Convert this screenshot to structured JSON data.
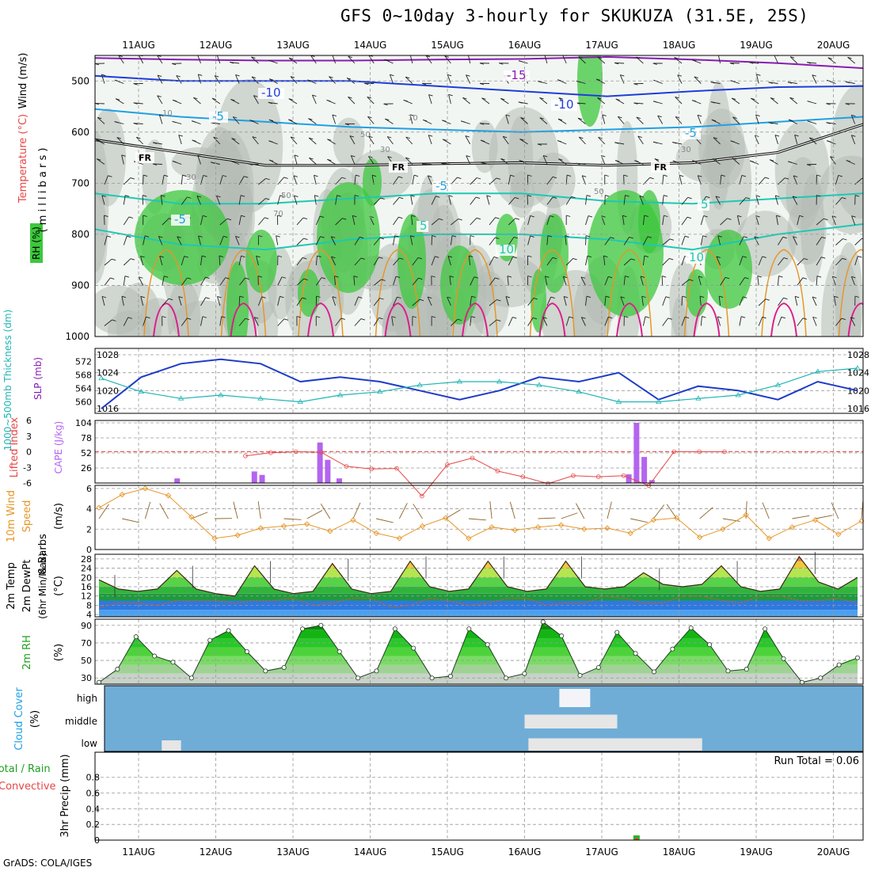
{
  "title": "GFS 0~10day 3-hourly for SKUKUZA (31.5E, 25S)",
  "credit": "GrADS: COLA/IGES",
  "run_total": "Run Total = 0.06",
  "dates": [
    "11AUG",
    "12AUG",
    "13AUG",
    "14AUG",
    "15AUG",
    "16AUG",
    "17AUG",
    "18AUG",
    "19AUG",
    "20AUG"
  ],
  "colors": {
    "rh_green": "#3cc83c",
    "rh_gray": "#b4bcb4",
    "temp_purple": "#8a1ab4",
    "temp_blue": "#1e3cdc",
    "temp_cyan": "#1ea0e6",
    "temp_teal": "#1ec8b4",
    "temp_orange": "#e69628",
    "temp_magenta": "#dc1e8c",
    "slp_blue": "#1e3cc8",
    "thickness_cyan": "#20b4b4",
    "cape_purple": "#b464f0",
    "li_red": "#e64646",
    "wind_orange": "#e69628",
    "barb_brown": "#8c6428",
    "cloud_blue": "#6fadd7",
    "cloud_white": "#e6e6e6"
  },
  "panel_labels": {
    "upper": {
      "rh": "RH (%)",
      "temperature": "Temperature (°C)",
      "wind": "Wind (m/s)",
      "millibars": "( m i l l i b a r s )"
    },
    "thickness": {
      "thick": "1000~500mb Thickness (dm)",
      "slp": "SLP (mb)"
    },
    "cape": {
      "li": "Lifted Index",
      "cape": "CAPE (J/kg)"
    },
    "wind10": {
      "a": "10m Wind",
      "b": "Speed",
      "c": "& Barbs",
      "unit": "(m/s)"
    },
    "temp2m": {
      "a": "2m Temp",
      "b": "2m DewPt",
      "c": "(6hr Min/Max)",
      "unit": "(°C)"
    },
    "rh2m": {
      "a": "2m RH",
      "unit": "(%)"
    },
    "cloud": {
      "a": "Cloud Cover",
      "unit": "(%)"
    },
    "precip": {
      "a": "Total / Rain",
      "b": "Convective",
      "unit": "3hr Precip (mm)"
    }
  },
  "chart_data": [
    {
      "type": "heatmap",
      "panel": "upper_air",
      "y_axis": {
        "ticks": [
          500,
          600,
          700,
          800,
          900,
          1000
        ],
        "label": "millibars",
        "reversed": true
      },
      "x_ticks": [
        "11AUG",
        "12AUG",
        "13AUG",
        "14AUG",
        "15AUG",
        "16AUG",
        "17AUG",
        "18AUG",
        "19AUG",
        "20AUG"
      ],
      "contour_labels": [
        "-15",
        "-10",
        "-10",
        "-5",
        "-5",
        "-5",
        "-5",
        "5",
        "5",
        "10",
        "10",
        "FR",
        "FR",
        "FR"
      ],
      "rh_contour_labels": [
        "10",
        "10",
        "30",
        "30",
        "30",
        "50",
        "50",
        "50",
        "70"
      ],
      "freezing_level_mb": [
        615,
        640,
        665,
        665,
        662,
        660,
        665,
        660,
        640,
        585
      ],
      "temp_levels": [
        {
          "label": "-15",
          "mb": [
            455,
            458,
            460,
            460,
            458,
            457,
            453,
            458,
            465,
            475
          ]
        },
        {
          "label": "-10",
          "mb": [
            490,
            500,
            500,
            500,
            510,
            520,
            530,
            520,
            512,
            510
          ]
        },
        {
          "label": "-5",
          "mb": [
            555,
            570,
            580,
            590,
            595,
            600,
            595,
            590,
            580,
            570
          ]
        },
        {
          "label": "5",
          "mb": [
            720,
            740,
            740,
            730,
            720,
            720,
            735,
            740,
            730,
            720
          ]
        },
        {
          "label": "10",
          "mb": [
            790,
            820,
            830,
            810,
            800,
            800,
            810,
            830,
            800,
            780
          ]
        }
      ]
    },
    {
      "type": "line",
      "panel": "thickness_slp",
      "x": [
        0,
        0.5,
        1,
        1.5,
        2,
        2.5,
        3,
        3.5,
        4,
        4.5,
        5,
        5.5,
        6,
        6.5,
        7,
        7.5,
        8,
        8.5,
        9,
        9.5
      ],
      "series": [
        {
          "name": "SLP (mb)",
          "axis": "right",
          "values": [
            1016,
            1023,
            1026,
            1027,
            1026,
            1022,
            1023,
            1022,
            1020,
            1018,
            1020,
            1023,
            1022,
            1024,
            1018,
            1021,
            1020,
            1018,
            1022,
            1020
          ]
        },
        {
          "name": "1000~500mb Thickness (dm)",
          "axis": "left",
          "values": [
            567,
            563,
            561,
            562,
            561,
            560,
            562,
            563,
            565,
            566,
            566,
            565,
            563,
            560,
            560,
            561,
            562,
            565,
            569,
            570
          ]
        }
      ],
      "ylim_slp": [
        1016,
        1028
      ],
      "slp_ticks": [
        "1016",
        "1020",
        "1024",
        "1028"
      ],
      "thick_ticks": [
        "560",
        "564",
        "568",
        "572"
      ]
    },
    {
      "type": "bar",
      "panel": "cape_li",
      "cape_ticks": [
        "26",
        "52",
        "78",
        "104"
      ],
      "li_ticks": [
        "6",
        "3",
        "0",
        "-3",
        "-6"
      ],
      "cape_bars": [
        {
          "day": 0.5,
          "value": 8
        },
        {
          "day": 1.5,
          "value": 20
        },
        {
          "day": 1.6,
          "value": 14
        },
        {
          "day": 2.35,
          "value": 70
        },
        {
          "day": 2.45,
          "value": 40
        },
        {
          "day": 2.6,
          "value": 8
        },
        {
          "day": 6.35,
          "value": 15
        },
        {
          "day": 6.45,
          "value": 104
        },
        {
          "day": 6.55,
          "value": 45
        },
        {
          "day": 6.65,
          "value": 5
        }
      ],
      "lifted_index": [
        5.2,
        5.8,
        6,
        5.9,
        3.2,
        2.7,
        2.8,
        -2.5,
        3.5,
        4.8,
        2.3,
        1.2,
        -0.1,
        1.4,
        1.2,
        1.4,
        -0.5,
        6,
        6,
        6
      ]
    },
    {
      "type": "line",
      "panel": "wind10m",
      "ylim": [
        0,
        6
      ],
      "y_ticks": [
        "0",
        "2",
        "4",
        "6"
      ],
      "values": [
        4.1,
        5.4,
        6,
        5.3,
        3.2,
        1.1,
        1.4,
        2.1,
        2.3,
        2.5,
        1.8,
        2.9,
        1.6,
        1.1,
        2.3,
        3.1,
        1.1,
        2.2,
        1.9,
        2.2,
        2.4,
        2,
        2.1,
        1.6,
        2.9,
        3.1,
        1.2,
        2,
        3.4,
        1.1,
        2.2,
        2.9,
        1.5,
        2.8
      ]
    },
    {
      "type": "area",
      "panel": "temp2m",
      "ylim": [
        4,
        30
      ],
      "y_ticks": [
        "4",
        "8",
        "12",
        "16",
        "20",
        "24",
        "28"
      ],
      "temperature": [
        19,
        15,
        14,
        15,
        23,
        15,
        13,
        12,
        25,
        15,
        13,
        14,
        26,
        15,
        13,
        14,
        27,
        16,
        14,
        15,
        27,
        16,
        14,
        15,
        27,
        16,
        15,
        16,
        22,
        17,
        16,
        17,
        25,
        16,
        14,
        15,
        29,
        18,
        15,
        20
      ],
      "dewpoint": [
        7,
        9,
        9,
        8,
        10,
        10,
        10,
        9,
        10,
        10,
        11,
        8,
        9,
        11,
        11,
        7,
        8,
        11,
        10,
        8,
        9,
        11,
        11,
        8,
        9,
        9,
        12,
        11,
        9,
        9,
        12,
        12,
        10,
        9,
        12,
        12,
        10,
        10,
        11,
        9
      ]
    },
    {
      "type": "area",
      "panel": "rh2m",
      "ylim": [
        25,
        95
      ],
      "y_ticks": [
        "30",
        "50",
        "70",
        "90"
      ],
      "values": [
        25,
        40,
        77,
        55,
        48,
        30,
        73,
        84,
        60,
        38,
        42,
        86,
        90,
        60,
        30,
        38,
        86,
        64,
        30,
        32,
        86,
        68,
        30,
        35,
        94,
        78,
        33,
        42,
        82,
        58,
        37,
        63,
        87,
        68,
        38,
        40,
        86,
        52,
        25,
        30,
        45,
        53
      ]
    },
    {
      "type": "heatmap",
      "panel": "cloud",
      "y_ticks": [
        "low",
        "middle",
        "high"
      ],
      "segments": [
        {
          "layer": "low",
          "start": 0.3,
          "end": 0.55,
          "cover": 0.5
        },
        {
          "layer": "high",
          "start": 5.45,
          "end": 5.85,
          "cover": 1.0
        },
        {
          "layer": "middle",
          "start": 5.0,
          "end": 6.2,
          "cover": 0.7
        },
        {
          "layer": "low",
          "start": 5.05,
          "end": 7.3,
          "cover": 0.6
        }
      ]
    },
    {
      "type": "bar",
      "panel": "precip",
      "ylim": [
        0,
        1
      ],
      "y_ticks": [
        "0",
        "0.2",
        "0.4",
        "0.6",
        "0.8"
      ],
      "bars": [
        {
          "day": 6.45,
          "total": 0.06,
          "convective": 0.03
        }
      ]
    }
  ]
}
